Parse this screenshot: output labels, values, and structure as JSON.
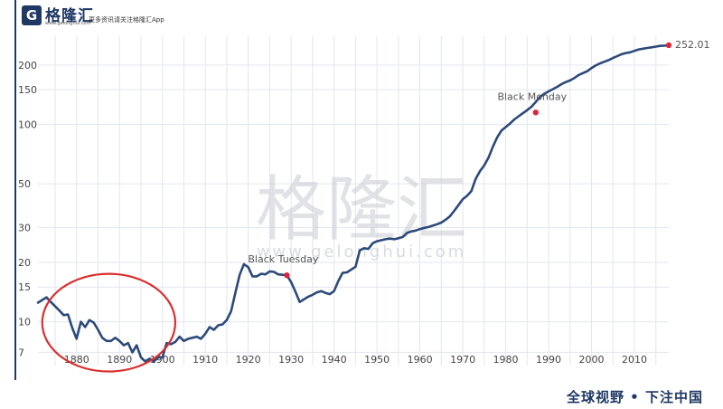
{
  "header": {
    "logo_name": "格隆汇",
    "logo_url": "www.gelonghui.com",
    "tagline": "更多资讯请关注格隆汇App"
  },
  "watermark": {
    "cn": "格隆汇",
    "url": "www.gelonghui.com"
  },
  "footer": {
    "slogan": "全球视野 • 下注中国"
  },
  "colors": {
    "line": "#2b4a7a",
    "marker": "#d7263d",
    "circle": "#d9302f",
    "grid": "#e3e6ef",
    "brand": "#1f3864"
  },
  "chart_data": {
    "type": "line",
    "yscale": "log",
    "xlim": [
      1871,
      2018
    ],
    "ylim": [
      6,
      280
    ],
    "yticks": [
      7,
      10,
      15,
      20,
      30,
      50,
      100,
      150,
      200
    ],
    "ytick_labels": [
      "7",
      "10",
      "15",
      "20",
      "30",
      "50",
      "100",
      "150",
      "200"
    ],
    "xticks": [
      1880,
      1890,
      1900,
      1910,
      1920,
      1930,
      1940,
      1950,
      1960,
      1970,
      1980,
      1990,
      2000,
      2010
    ],
    "xtick_labels": [
      "1880",
      "1890",
      "1900",
      "1910",
      "1920",
      "1930",
      "1940",
      "1950",
      "1960",
      "1970",
      "1980",
      "1990",
      "2000",
      "2010"
    ],
    "grid": true,
    "series": [
      {
        "points": [
          [
            1871,
            12.5
          ],
          [
            1873,
            13.3
          ],
          [
            1874,
            12.6
          ],
          [
            1876,
            11.4
          ],
          [
            1877,
            10.8
          ],
          [
            1878,
            10.9
          ],
          [
            1879,
            9.3
          ],
          [
            1880,
            8.2
          ],
          [
            1881,
            10.0
          ],
          [
            1882,
            9.4
          ],
          [
            1883,
            10.2
          ],
          [
            1884,
            9.9
          ],
          [
            1885,
            9.1
          ],
          [
            1886,
            8.3
          ],
          [
            1887,
            8.0
          ],
          [
            1888,
            8.0
          ],
          [
            1889,
            8.3
          ],
          [
            1890,
            8.0
          ],
          [
            1891,
            7.6
          ],
          [
            1892,
            7.8
          ],
          [
            1893,
            7.0
          ],
          [
            1894,
            7.6
          ],
          [
            1895,
            6.6
          ],
          [
            1896,
            6.3
          ],
          [
            1897,
            6.5
          ],
          [
            1898,
            6.3
          ],
          [
            1899,
            6.6
          ],
          [
            1900,
            6.6
          ],
          [
            1901,
            7.8
          ],
          [
            1902,
            7.7
          ],
          [
            1903,
            7.9
          ],
          [
            1904,
            8.4
          ],
          [
            1905,
            8.0
          ],
          [
            1906,
            8.2
          ],
          [
            1907,
            8.3
          ],
          [
            1908,
            8.4
          ],
          [
            1909,
            8.2
          ],
          [
            1910,
            8.7
          ],
          [
            1911,
            9.4
          ],
          [
            1912,
            9.1
          ],
          [
            1913,
            9.6
          ],
          [
            1914,
            9.7
          ],
          [
            1915,
            10.2
          ],
          [
            1916,
            11.3
          ],
          [
            1917,
            14.0
          ],
          [
            1918,
            17.3
          ],
          [
            1919,
            19.6
          ],
          [
            1920,
            18.9
          ],
          [
            1921,
            17.0
          ],
          [
            1922,
            17.0
          ],
          [
            1923,
            17.5
          ],
          [
            1924,
            17.4
          ],
          [
            1925,
            18.0
          ],
          [
            1926,
            17.9
          ],
          [
            1927,
            17.4
          ],
          [
            1928,
            17.3
          ],
          [
            1929,
            17.2
          ],
          [
            1930,
            15.9
          ],
          [
            1931,
            14.2
          ],
          [
            1932,
            12.6
          ],
          [
            1933,
            13.0
          ],
          [
            1934,
            13.4
          ],
          [
            1935,
            13.7
          ],
          [
            1936,
            14.1
          ],
          [
            1937,
            14.3
          ],
          [
            1938,
            14.0
          ],
          [
            1939,
            13.8
          ],
          [
            1940,
            14.3
          ],
          [
            1941,
            16.1
          ],
          [
            1942,
            17.7
          ],
          [
            1943,
            17.8
          ],
          [
            1944,
            18.4
          ],
          [
            1945,
            19.0
          ],
          [
            1946,
            23.0
          ],
          [
            1947,
            23.6
          ],
          [
            1948,
            23.4
          ],
          [
            1949,
            25.0
          ],
          [
            1950,
            25.6
          ],
          [
            1951,
            25.9
          ],
          [
            1952,
            26.2
          ],
          [
            1953,
            26.4
          ],
          [
            1954,
            26.2
          ],
          [
            1955,
            26.5
          ],
          [
            1956,
            26.9
          ],
          [
            1957,
            28.2
          ],
          [
            1958,
            28.7
          ],
          [
            1959,
            29.0
          ],
          [
            1960,
            29.5
          ],
          [
            1961,
            29.9
          ],
          [
            1962,
            30.2
          ],
          [
            1963,
            30.7
          ],
          [
            1964,
            31.2
          ],
          [
            1965,
            31.8
          ],
          [
            1966,
            32.9
          ],
          [
            1967,
            34.2
          ],
          [
            1968,
            36.5
          ],
          [
            1969,
            39.0
          ],
          [
            1970,
            41.8
          ],
          [
            1971,
            43.5
          ],
          [
            1972,
            46.0
          ],
          [
            1973,
            53.0
          ],
          [
            1974,
            58.0
          ],
          [
            1975,
            62.0
          ],
          [
            1976,
            68.0
          ],
          [
            1977,
            77.0
          ],
          [
            1978,
            86.0
          ],
          [
            1979,
            93.0
          ],
          [
            1980,
            97.0
          ],
          [
            1981,
            101.0
          ],
          [
            1982,
            106.0
          ],
          [
            1983,
            110.0
          ],
          [
            1984,
            114.0
          ],
          [
            1985,
            118.0
          ],
          [
            1986,
            123.0
          ],
          [
            1987,
            130.0
          ],
          [
            1988,
            138.0
          ],
          [
            1989,
            143.0
          ],
          [
            1990,
            147.0
          ],
          [
            1991,
            151.0
          ],
          [
            1992,
            155.0
          ],
          [
            1993,
            160.0
          ],
          [
            1994,
            164.0
          ],
          [
            1995,
            167.0
          ],
          [
            1996,
            172.0
          ],
          [
            1997,
            178.0
          ],
          [
            1998,
            182.0
          ],
          [
            1999,
            186.0
          ],
          [
            2000,
            193.0
          ],
          [
            2001,
            199.0
          ],
          [
            2002,
            204.0
          ],
          [
            2003,
            208.0
          ],
          [
            2004,
            212.0
          ],
          [
            2005,
            217.0
          ],
          [
            2006,
            222.0
          ],
          [
            2007,
            227.0
          ],
          [
            2008,
            230.0
          ],
          [
            2009,
            232.0
          ],
          [
            2010,
            236.0
          ],
          [
            2011,
            240.0
          ],
          [
            2012,
            242.0
          ],
          [
            2013,
            244.0
          ],
          [
            2014,
            246.0
          ],
          [
            2015,
            248.0
          ],
          [
            2016,
            250.0
          ],
          [
            2017,
            251.0
          ],
          [
            2018,
            252.01
          ]
        ]
      }
    ],
    "annotations": [
      {
        "label": "Black Tuesday",
        "x": 1929,
        "y": 17.2
      },
      {
        "label": "Black Monday",
        "x": 1987,
        "y": 115.0
      },
      {
        "label": "252.01",
        "x": 2018,
        "y": 252.01
      }
    ],
    "highlight_region": {
      "shape": "ellipse",
      "x_range": [
        1872,
        1903
      ],
      "y_range": [
        5.6,
        17.5
      ]
    }
  }
}
